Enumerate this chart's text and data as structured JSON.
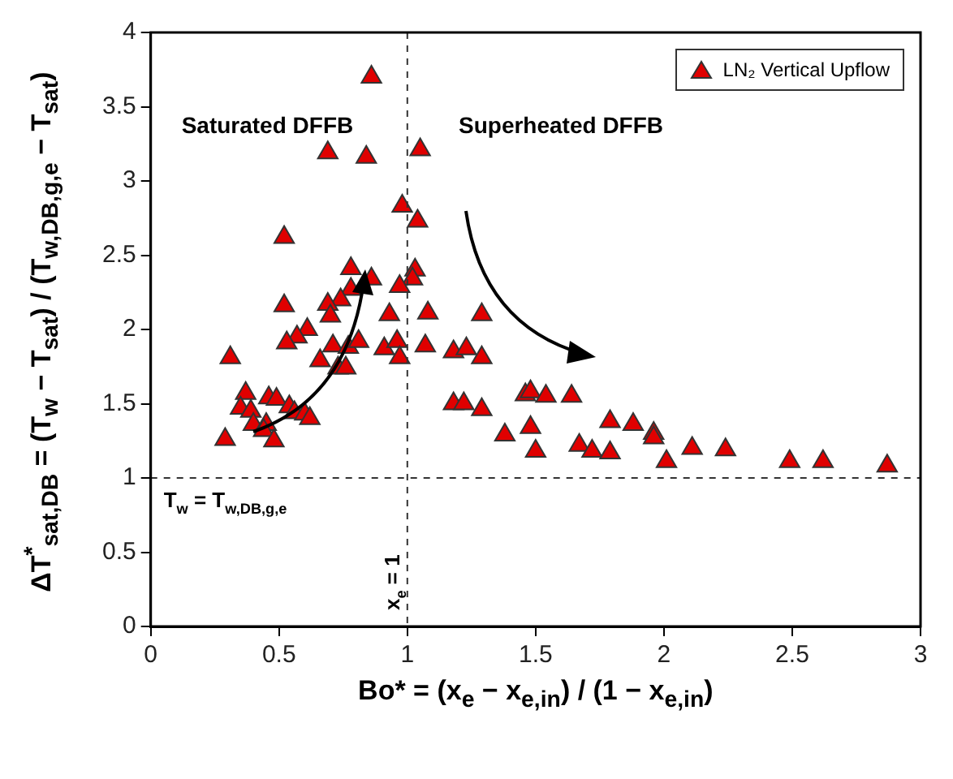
{
  "chart_data": {
    "type": "scatter",
    "xlabel": "Bo* = (x$_{e}$ − x$_{e,in}$) / (1 − x$_{e,in}$)",
    "ylabel": "ΔT$^{*}$$_{sat,DB}$ = (T$_{w}$ − T$_{sat}$) / (T$_{w,DB,g,e}$ − T$_{sat}$)",
    "xlim": [
      0,
      3
    ],
    "ylim": [
      0,
      4
    ],
    "xticks": [
      0,
      0.5,
      1,
      1.5,
      2,
      2.5,
      3
    ],
    "yticks": [
      0,
      0.5,
      1,
      1.5,
      2,
      2.5,
      3,
      3.5,
      4
    ],
    "legend": "top right",
    "marker": "triangle",
    "ref_lines": [
      {
        "axis": "x",
        "value": 1,
        "label": "x$_{e}$ = 1",
        "line_style": "dashed"
      },
      {
        "axis": "y",
        "value": 1,
        "label": "T$_{w}$ = T$_{w,DB,g,e}$",
        "line_style": "dashed"
      }
    ],
    "annotations": [
      "Saturated DFFB",
      "Superheated DFFB"
    ],
    "series": [
      {
        "name": "LN₂ Vertical Upflow",
        "color": "#e00000",
        "x": [
          0.86,
          0.69,
          0.84,
          1.05,
          0.98,
          1.04,
          0.52,
          0.78,
          0.86,
          1.03,
          1.02,
          0.97,
          0.78,
          0.74,
          0.69,
          0.7,
          0.52,
          0.93,
          1.08,
          1.29,
          0.61,
          0.57,
          0.53,
          0.71,
          0.77,
          0.81,
          0.91,
          0.96,
          0.97,
          1.07,
          0.66,
          0.73,
          0.76,
          0.31,
          1.18,
          1.23,
          1.29,
          0.37,
          0.35,
          0.39,
          0.46,
          0.49,
          0.54,
          0.56,
          0.6,
          0.62,
          0.4,
          0.45,
          0.44,
          0.29,
          0.48,
          1.18,
          1.22,
          1.29,
          1.38,
          1.46,
          1.48,
          1.54,
          1.64,
          1.48,
          1.5,
          1.67,
          1.72,
          1.79,
          1.79,
          1.88,
          1.96,
          1.96,
          2.01,
          2.11,
          2.24,
          2.49,
          2.62,
          2.87
        ],
        "values": [
          3.7,
          3.19,
          3.16,
          3.21,
          2.83,
          2.73,
          2.62,
          2.41,
          2.34,
          2.4,
          2.34,
          2.29,
          2.27,
          2.2,
          2.17,
          2.09,
          2.16,
          2.1,
          2.11,
          2.1,
          2.0,
          1.95,
          1.91,
          1.89,
          1.88,
          1.92,
          1.87,
          1.92,
          1.81,
          1.89,
          1.79,
          1.74,
          1.74,
          1.81,
          1.85,
          1.87,
          1.81,
          1.57,
          1.47,
          1.45,
          1.54,
          1.53,
          1.48,
          1.44,
          1.43,
          1.4,
          1.36,
          1.36,
          1.32,
          1.26,
          1.25,
          1.5,
          1.5,
          1.46,
          1.29,
          1.56,
          1.58,
          1.55,
          1.55,
          1.34,
          1.18,
          1.22,
          1.18,
          1.17,
          1.38,
          1.36,
          1.3,
          1.27,
          1.11,
          1.2,
          1.19,
          1.11,
          1.11,
          1.08
        ]
      }
    ]
  }
}
